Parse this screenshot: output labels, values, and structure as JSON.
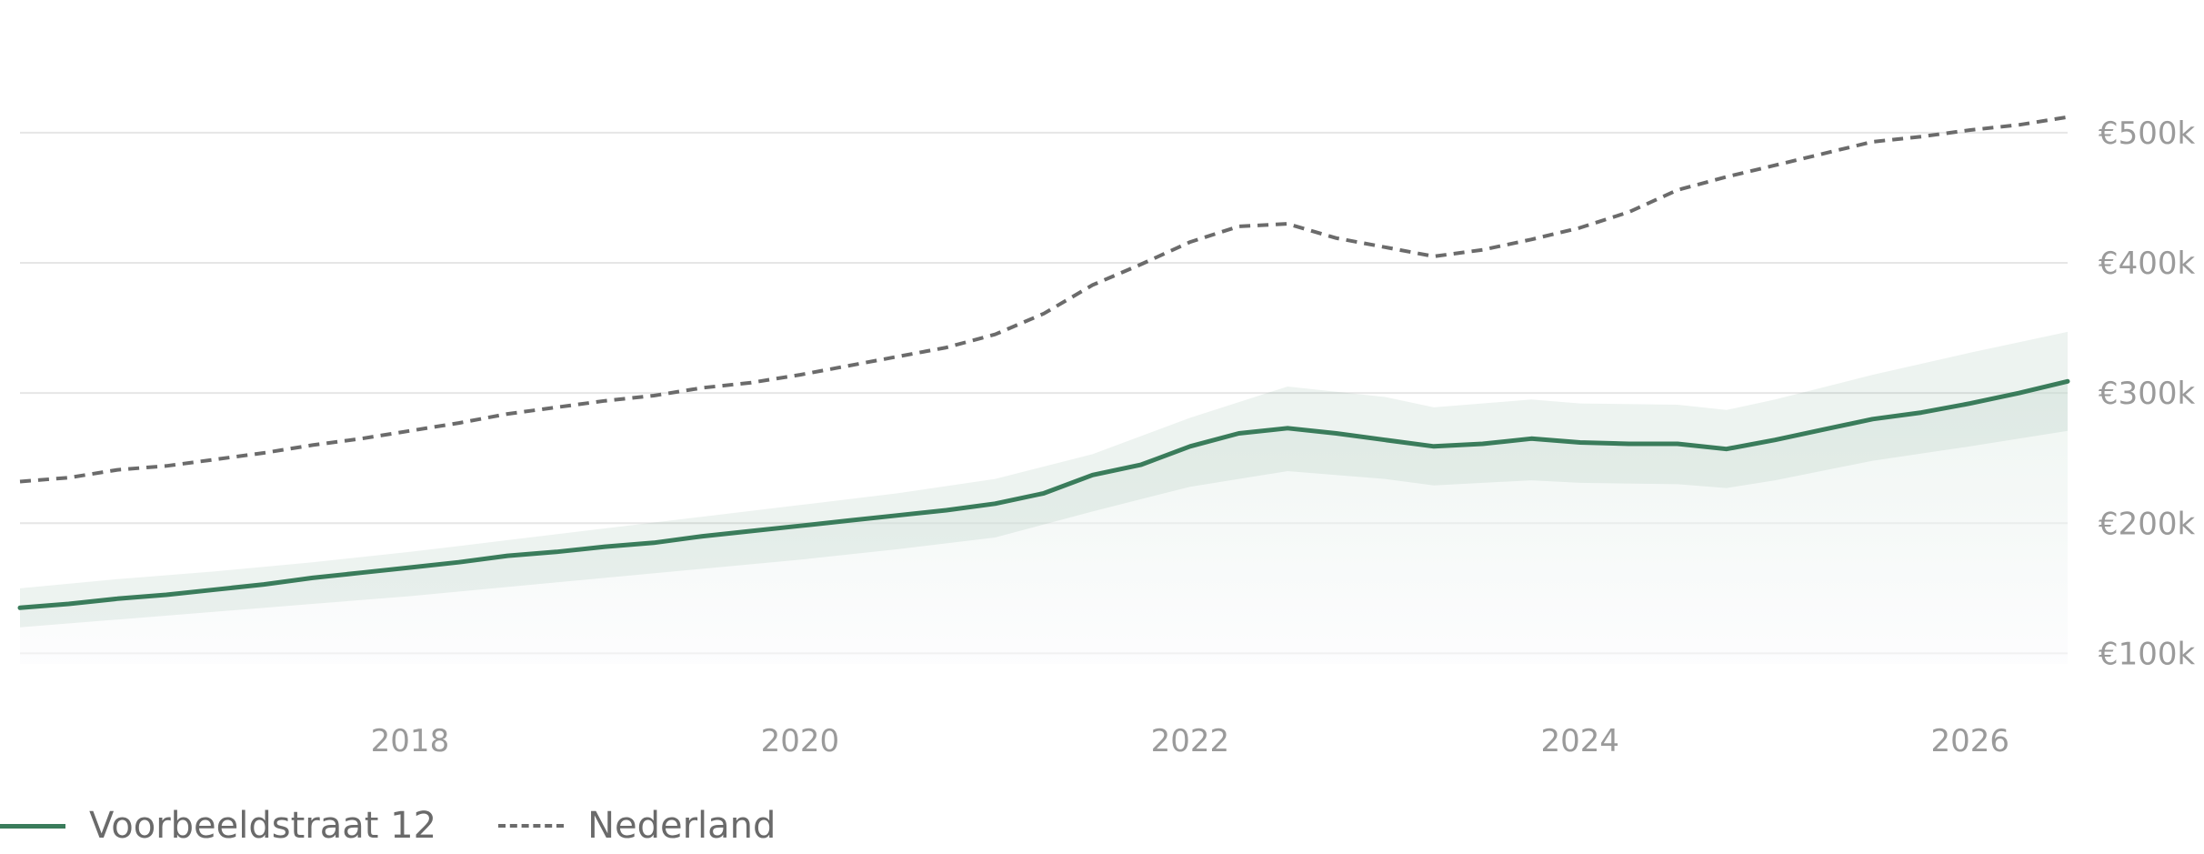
{
  "chart_data": {
    "type": "line",
    "title": "",
    "xlabel": "",
    "ylabel": "",
    "x_ticks": [
      "2018",
      "2020",
      "2022",
      "2024",
      "2026"
    ],
    "y_ticks": [
      "€100k",
      "€200k",
      "€300k",
      "€400k",
      "€500k"
    ],
    "y_tick_values": [
      100000,
      200000,
      300000,
      400000,
      500000
    ],
    "xlim": [
      2016.0,
      2026.5
    ],
    "ylim": [
      50000,
      560000
    ],
    "grid": "horizontal",
    "legend_position": "bottom-left",
    "series": [
      {
        "name": "Voorbeeldstraat 12",
        "style": "solid",
        "color": "#3a7c5b",
        "band_color": "#3a7c5b",
        "points": [
          [
            2016.0,
            135000
          ],
          [
            2016.25,
            138000
          ],
          [
            2016.5,
            142000
          ],
          [
            2016.75,
            145000
          ],
          [
            2017.0,
            149000
          ],
          [
            2017.25,
            153000
          ],
          [
            2017.5,
            158000
          ],
          [
            2017.75,
            162000
          ],
          [
            2018.0,
            166000
          ],
          [
            2018.25,
            170000
          ],
          [
            2018.5,
            175000
          ],
          [
            2018.75,
            178000
          ],
          [
            2019.0,
            182000
          ],
          [
            2019.25,
            185000
          ],
          [
            2019.5,
            190000
          ],
          [
            2019.75,
            194000
          ],
          [
            2020.0,
            198000
          ],
          [
            2020.25,
            202000
          ],
          [
            2020.5,
            206000
          ],
          [
            2020.75,
            210000
          ],
          [
            2021.0,
            215000
          ],
          [
            2021.25,
            223000
          ],
          [
            2021.5,
            237000
          ],
          [
            2021.75,
            245000
          ],
          [
            2022.0,
            259000
          ],
          [
            2022.25,
            269000
          ],
          [
            2022.5,
            273000
          ],
          [
            2022.75,
            269000
          ],
          [
            2023.0,
            264000
          ],
          [
            2023.25,
            259000
          ],
          [
            2023.5,
            261000
          ],
          [
            2023.75,
            265000
          ],
          [
            2024.0,
            262000
          ],
          [
            2024.25,
            261000
          ],
          [
            2024.5,
            261000
          ],
          [
            2024.75,
            257000
          ],
          [
            2025.0,
            264000
          ],
          [
            2025.25,
            272000
          ],
          [
            2025.5,
            280000
          ],
          [
            2025.75,
            285000
          ],
          [
            2026.0,
            292000
          ],
          [
            2026.25,
            300000
          ],
          [
            2026.5,
            309000
          ]
        ],
        "band_upper": [
          [
            2016.0,
            150000
          ],
          [
            2016.5,
            157000
          ],
          [
            2017.0,
            163000
          ],
          [
            2017.5,
            170000
          ],
          [
            2018.0,
            178000
          ],
          [
            2018.5,
            187000
          ],
          [
            2019.0,
            196000
          ],
          [
            2019.5,
            205000
          ],
          [
            2020.0,
            214000
          ],
          [
            2020.5,
            223000
          ],
          [
            2021.0,
            234000
          ],
          [
            2021.5,
            253000
          ],
          [
            2022.0,
            281000
          ],
          [
            2022.5,
            305000
          ],
          [
            2023.0,
            297000
          ],
          [
            2023.25,
            289000
          ],
          [
            2023.75,
            295000
          ],
          [
            2024.0,
            292000
          ],
          [
            2024.5,
            291000
          ],
          [
            2024.75,
            287000
          ],
          [
            2025.0,
            295000
          ],
          [
            2025.5,
            314000
          ],
          [
            2026.0,
            331000
          ],
          [
            2026.5,
            347000
          ]
        ],
        "band_lower": [
          [
            2016.0,
            120000
          ],
          [
            2016.5,
            126000
          ],
          [
            2017.0,
            132000
          ],
          [
            2017.5,
            138000
          ],
          [
            2018.0,
            144000
          ],
          [
            2018.5,
            151000
          ],
          [
            2019.0,
            158000
          ],
          [
            2019.5,
            165000
          ],
          [
            2020.0,
            172000
          ],
          [
            2020.5,
            180000
          ],
          [
            2021.0,
            189000
          ],
          [
            2021.5,
            209000
          ],
          [
            2022.0,
            228000
          ],
          [
            2022.5,
            240000
          ],
          [
            2023.0,
            234000
          ],
          [
            2023.25,
            229000
          ],
          [
            2023.75,
            233000
          ],
          [
            2024.0,
            231000
          ],
          [
            2024.5,
            230000
          ],
          [
            2024.75,
            227000
          ],
          [
            2025.0,
            233000
          ],
          [
            2025.5,
            248000
          ],
          [
            2026.0,
            259000
          ],
          [
            2026.5,
            271000
          ]
        ]
      },
      {
        "name": "Nederland",
        "style": "dashed",
        "color": "#6b6b6b",
        "points": [
          [
            2016.0,
            232000
          ],
          [
            2016.25,
            235000
          ],
          [
            2016.5,
            241000
          ],
          [
            2016.75,
            244000
          ],
          [
            2017.0,
            249000
          ],
          [
            2017.25,
            254000
          ],
          [
            2017.5,
            260000
          ],
          [
            2017.75,
            265000
          ],
          [
            2018.0,
            271000
          ],
          [
            2018.25,
            277000
          ],
          [
            2018.5,
            284000
          ],
          [
            2018.75,
            289000
          ],
          [
            2019.0,
            294000
          ],
          [
            2019.25,
            298000
          ],
          [
            2019.5,
            304000
          ],
          [
            2019.75,
            308000
          ],
          [
            2020.0,
            314000
          ],
          [
            2020.25,
            321000
          ],
          [
            2020.5,
            328000
          ],
          [
            2020.75,
            335000
          ],
          [
            2021.0,
            345000
          ],
          [
            2021.25,
            361000
          ],
          [
            2021.5,
            383000
          ],
          [
            2021.75,
            399000
          ],
          [
            2022.0,
            416000
          ],
          [
            2022.25,
            428000
          ],
          [
            2022.5,
            430000
          ],
          [
            2022.75,
            419000
          ],
          [
            2023.0,
            412000
          ],
          [
            2023.25,
            405000
          ],
          [
            2023.5,
            410000
          ],
          [
            2023.75,
            418000
          ],
          [
            2024.0,
            427000
          ],
          [
            2024.25,
            439000
          ],
          [
            2024.5,
            456000
          ],
          [
            2024.75,
            466000
          ],
          [
            2025.0,
            475000
          ],
          [
            2025.25,
            484000
          ],
          [
            2025.5,
            493000
          ],
          [
            2025.75,
            497000
          ],
          [
            2026.0,
            502000
          ],
          [
            2026.25,
            506000
          ],
          [
            2026.5,
            512000
          ]
        ]
      }
    ]
  },
  "legend": {
    "items": [
      {
        "label": "Voorbeeldstraat 12"
      },
      {
        "label": "Nederland"
      }
    ]
  }
}
